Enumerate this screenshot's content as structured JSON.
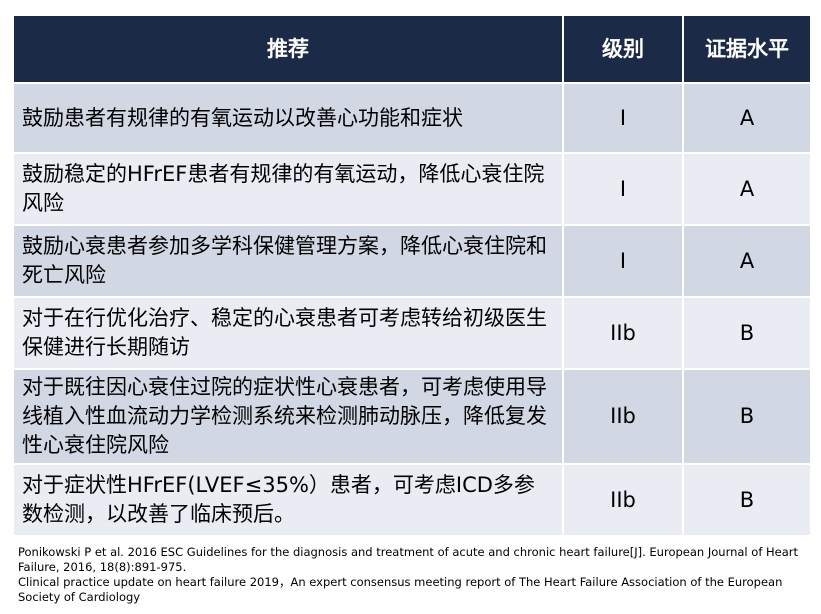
{
  "table": {
    "header": [
      "推荐",
      "级别",
      "证据水平"
    ],
    "rows": [
      [
        "鼓励患者有规律的有氧运动以改善心功能和症状",
        "I",
        "A"
      ],
      [
        "鼓励稳定的HFrEF患者有规律的有氧运动，降低心衰住院风险",
        "I",
        "A"
      ],
      [
        "鼓励心衰患者参加多学科保健管理方案，降低心衰住院和死亡风险",
        "I",
        "A"
      ],
      [
        "对于在行优化治疗、稳定的心衰患者可考虑转给初级医生保健进行长期随访",
        "IIb",
        "B"
      ],
      [
        "对于既往因心衰住过院的症状性心衰患者，可考虑使用导线植入性血流动力学检测系统来检测肺动脉压，降低复发性心衰住院风险",
        "IIb",
        "B"
      ],
      [
        "对于症状性HFrEF(LVEF≤35%）患者，可考虑ICD多参数检测，以改善了临床预后。",
        "IIb",
        "B"
      ]
    ]
  },
  "footnotes": [
    "Ponikowski P et al. 2016 ESC Guidelines for the diagnosis and treatment of acute and chronic heart failure[J]. European Journal of Heart Failure, 2016, 18(8):891-975.",
    "Clinical practice update on heart failure 2019，An expert consensus meeting report of The Heart Failure Association of the European Society of Cardiology"
  ]
}
